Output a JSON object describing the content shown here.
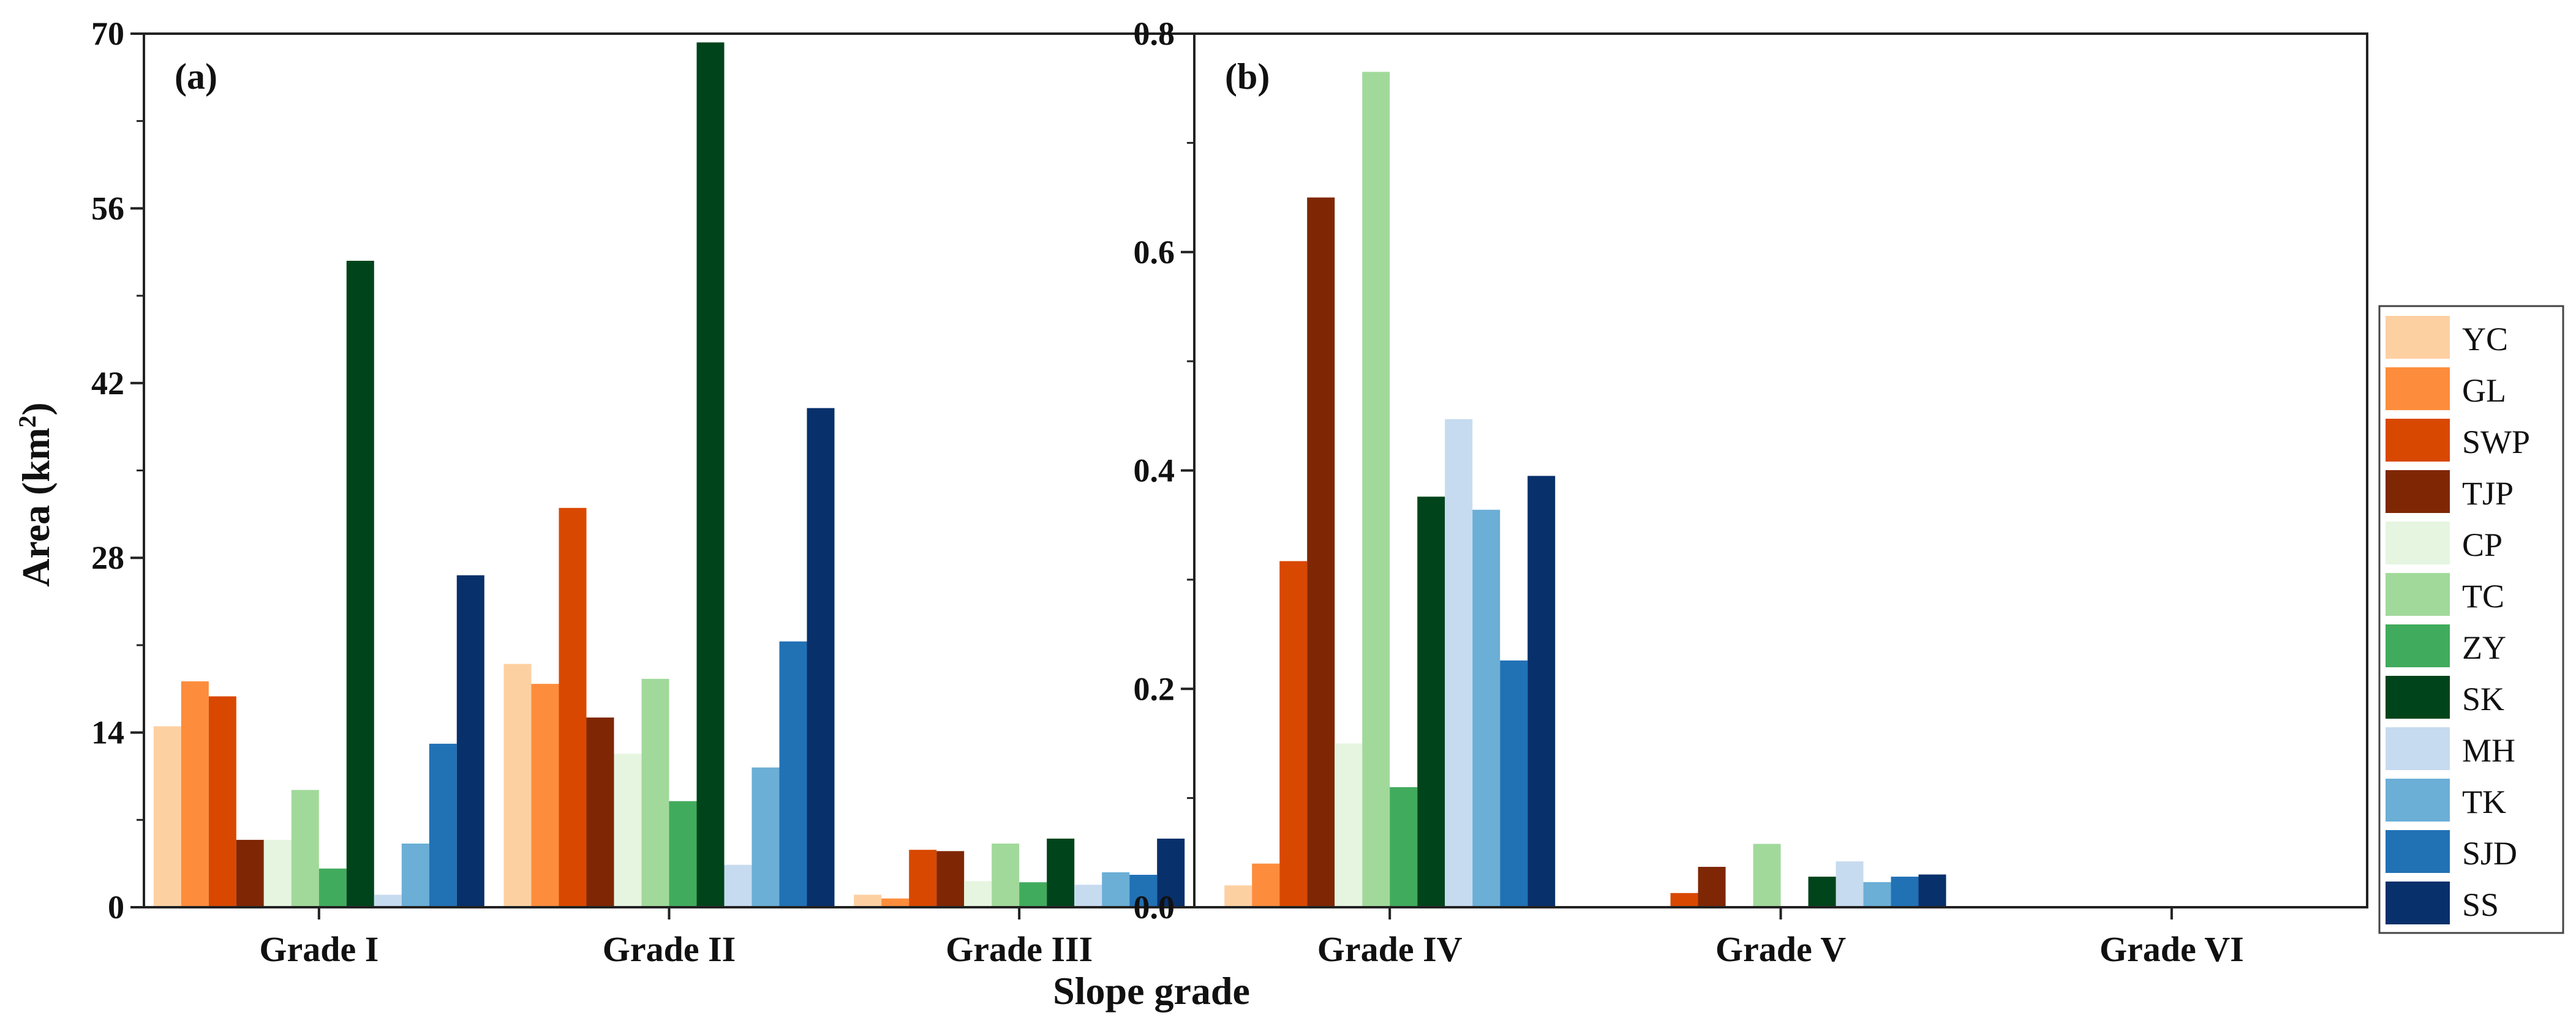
{
  "chart_data": {
    "type": "bar",
    "xlabel": "Slope grade",
    "ylabel": "Area (km²)",
    "ylabel_main": "Area (km",
    "ylabel_sup": "2",
    "ylabel_close": ")",
    "legend_position": "right",
    "series_names": [
      "YC",
      "GL",
      "SWP",
      "TJP",
      "CP",
      "TC",
      "ZY",
      "SK",
      "MH",
      "TK",
      "SJD",
      "SS"
    ],
    "colors": [
      "#fdd0a2",
      "#fd8d3c",
      "#d94801",
      "#7f2704",
      "#e5f5e0",
      "#a1d99b",
      "#41ab5d",
      "#00441b",
      "#c6dbef",
      "#6baed6",
      "#2171b5",
      "#08306b"
    ],
    "panels": [
      {
        "label": "(a)",
        "categories": [
          "Grade I",
          "Grade II",
          "Grade III"
        ],
        "ylim": [
          0,
          70
        ],
        "yticks": [
          0,
          14,
          28,
          42,
          56,
          70
        ],
        "ytick_labels": [
          "0",
          "14",
          "28",
          "42",
          "56",
          "70"
        ],
        "series": [
          {
            "name": "YC",
            "values": [
              14.5,
              19.5,
              1.0
            ]
          },
          {
            "name": "GL",
            "values": [
              18.1,
              17.9,
              0.7
            ]
          },
          {
            "name": "SWP",
            "values": [
              16.9,
              32.0,
              4.6
            ]
          },
          {
            "name": "TJP",
            "values": [
              5.4,
              15.2,
              4.5
            ]
          },
          {
            "name": "CP",
            "values": [
              5.4,
              12.3,
              2.1
            ]
          },
          {
            "name": "TC",
            "values": [
              9.4,
              18.3,
              5.1
            ]
          },
          {
            "name": "ZY",
            "values": [
              3.1,
              8.5,
              2.0
            ]
          },
          {
            "name": "SK",
            "values": [
              51.8,
              69.3,
              5.5
            ]
          },
          {
            "name": "MH",
            "values": [
              1.0,
              3.4,
              1.8
            ]
          },
          {
            "name": "TK",
            "values": [
              5.1,
              11.2,
              2.8
            ]
          },
          {
            "name": "SJD",
            "values": [
              13.1,
              21.3,
              2.6
            ]
          },
          {
            "name": "SS",
            "values": [
              26.6,
              40.0,
              5.5
            ]
          }
        ]
      },
      {
        "label": "(b)",
        "categories": [
          "Grade IV",
          "Grade V",
          "Grade VI"
        ],
        "ylim": [
          0,
          0.8
        ],
        "yticks": [
          0,
          0.2,
          0.4,
          0.6,
          0.8
        ],
        "ytick_labels": [
          "0.0",
          "0.2",
          "0.4",
          "0.6",
          "0.8"
        ],
        "series": [
          {
            "name": "YC",
            "values": [
              0.02,
              0,
              0
            ]
          },
          {
            "name": "GL",
            "values": [
              0.04,
              0,
              0
            ]
          },
          {
            "name": "SWP",
            "values": [
              0.317,
              0.013,
              0
            ]
          },
          {
            "name": "TJP",
            "values": [
              0.65,
              0.037,
              0
            ]
          },
          {
            "name": "CP",
            "values": [
              0.15,
              0,
              0
            ]
          },
          {
            "name": "TC",
            "values": [
              0.765,
              0.058,
              0
            ]
          },
          {
            "name": "ZY",
            "values": [
              0.11,
              0,
              0
            ]
          },
          {
            "name": "SK",
            "values": [
              0.376,
              0.028,
              0
            ]
          },
          {
            "name": "MH",
            "values": [
              0.447,
              0.042,
              0
            ]
          },
          {
            "name": "TK",
            "values": [
              0.364,
              0.023,
              0
            ]
          },
          {
            "name": "SJD",
            "values": [
              0.226,
              0.028,
              0
            ]
          },
          {
            "name": "SS",
            "values": [
              0.395,
              0.03,
              0
            ]
          }
        ]
      }
    ]
  }
}
